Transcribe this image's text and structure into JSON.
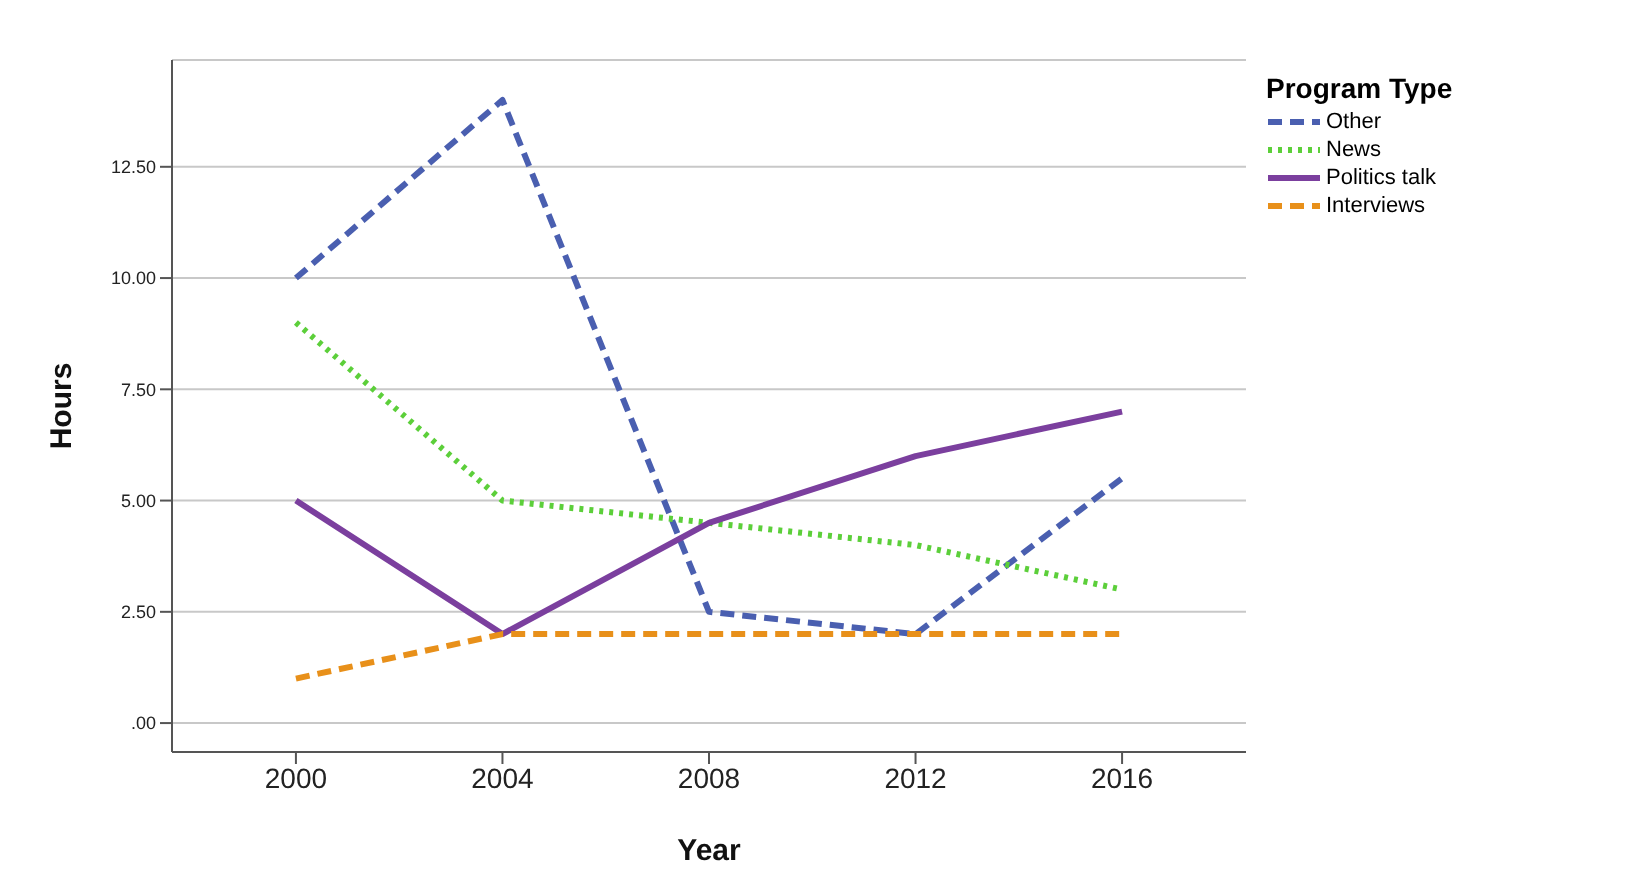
{
  "chart_data": {
    "type": "line",
    "xlabel": "Year",
    "ylabel": "Hours",
    "legend_title": "Program Type",
    "categories": [
      "2000",
      "2004",
      "2008",
      "2012",
      "2016"
    ],
    "series": [
      {
        "name": "Other",
        "color": "#4a5fb0",
        "line_style": "dashed",
        "values": [
          10,
          14,
          2.5,
          2,
          5.5
        ]
      },
      {
        "name": "News",
        "color": "#5ccf3a",
        "line_style": "dotted",
        "values": [
          9,
          5,
          4.5,
          4,
          3
        ]
      },
      {
        "name": "Politics talk",
        "color": "#7b3f9e",
        "line_style": "solid",
        "values": [
          5,
          2,
          4.5,
          6,
          7
        ]
      },
      {
        "name": "Interviews",
        "color": "#e8901a",
        "line_style": "dashed",
        "values": [
          1,
          2,
          2,
          2,
          2
        ]
      }
    ],
    "ylim": [
      -0.65,
      14.9
    ],
    "yticks": [
      {
        "value": 0,
        "label": ".00"
      },
      {
        "value": 2.5,
        "label": "2.50"
      },
      {
        "value": 5,
        "label": "5.00"
      },
      {
        "value": 7.5,
        "label": "7.50"
      },
      {
        "value": 10,
        "label": "10.00"
      },
      {
        "value": 12.5,
        "label": "12.50"
      }
    ],
    "grid": "y",
    "legend": "top right",
    "marker": "none"
  }
}
